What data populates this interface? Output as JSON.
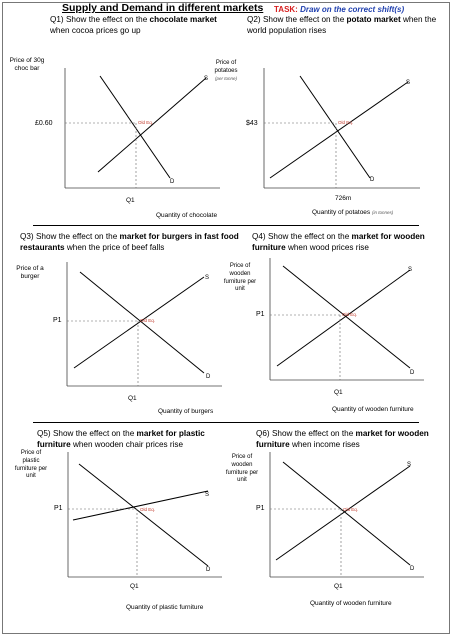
{
  "worksheet": {
    "title": "Supply and Demand in different markets",
    "task_label": "TASK:",
    "task_text": "Draw on the correct shift(s)"
  },
  "common": {
    "supply_letter": "S",
    "demand_letter": "D",
    "old_eq": "Old Eq.",
    "q1": "Q1",
    "p1": "P1"
  },
  "q1": {
    "number": "Q1)",
    "text_a": "Show the effect on the ",
    "text_b": "chocolate market",
    "text_c": " when cocoa prices go up",
    "y_label": "Price of 30g choc bar",
    "price": "£0.60",
    "x_label": "Quantity of chocolate"
  },
  "q2": {
    "number": "Q2)",
    "text_a": "Show the effect on the ",
    "text_b": "potato market",
    "text_c": " when the world population rises",
    "y_label": "Price of potatoes",
    "y_unit": "(per tonne)",
    "price": "$43",
    "quantity": "726m",
    "x_label": "Quantity of potatoes",
    "x_unit": "(in tonnes)"
  },
  "q3": {
    "number": "Q3)",
    "text_a": "Show the effect on the ",
    "text_b": "market for burgers in fast food restaurants",
    "text_c": " when the price of beef falls",
    "y_label": "Price of a burger",
    "x_label": "Quantity of burgers"
  },
  "q4": {
    "number": "Q4)",
    "text_a": "Show the effect on the ",
    "text_b": "market for wooden furniture",
    "text_c": " when wood prices rise",
    "y_label": "Price of wooden furniture per unit",
    "x_label": "Quantity of wooden furniture"
  },
  "q5": {
    "number": "Q5)",
    "text_a": "Show the effect on the ",
    "text_b": "market for plastic furniture",
    "text_c": " when wooden chair prices rise",
    "y_label": "Price of plastic furniture per unit",
    "x_label": "Quantity of plastic furniture"
  },
  "q6": {
    "number": "Q6)",
    "text_a": "Show the effect on the ",
    "text_b": "market for wooden furniture",
    "text_c": " when income rises",
    "y_label": "Price of wooden furniture per unit",
    "x_label": "Quantity of wooden furniture"
  }
}
